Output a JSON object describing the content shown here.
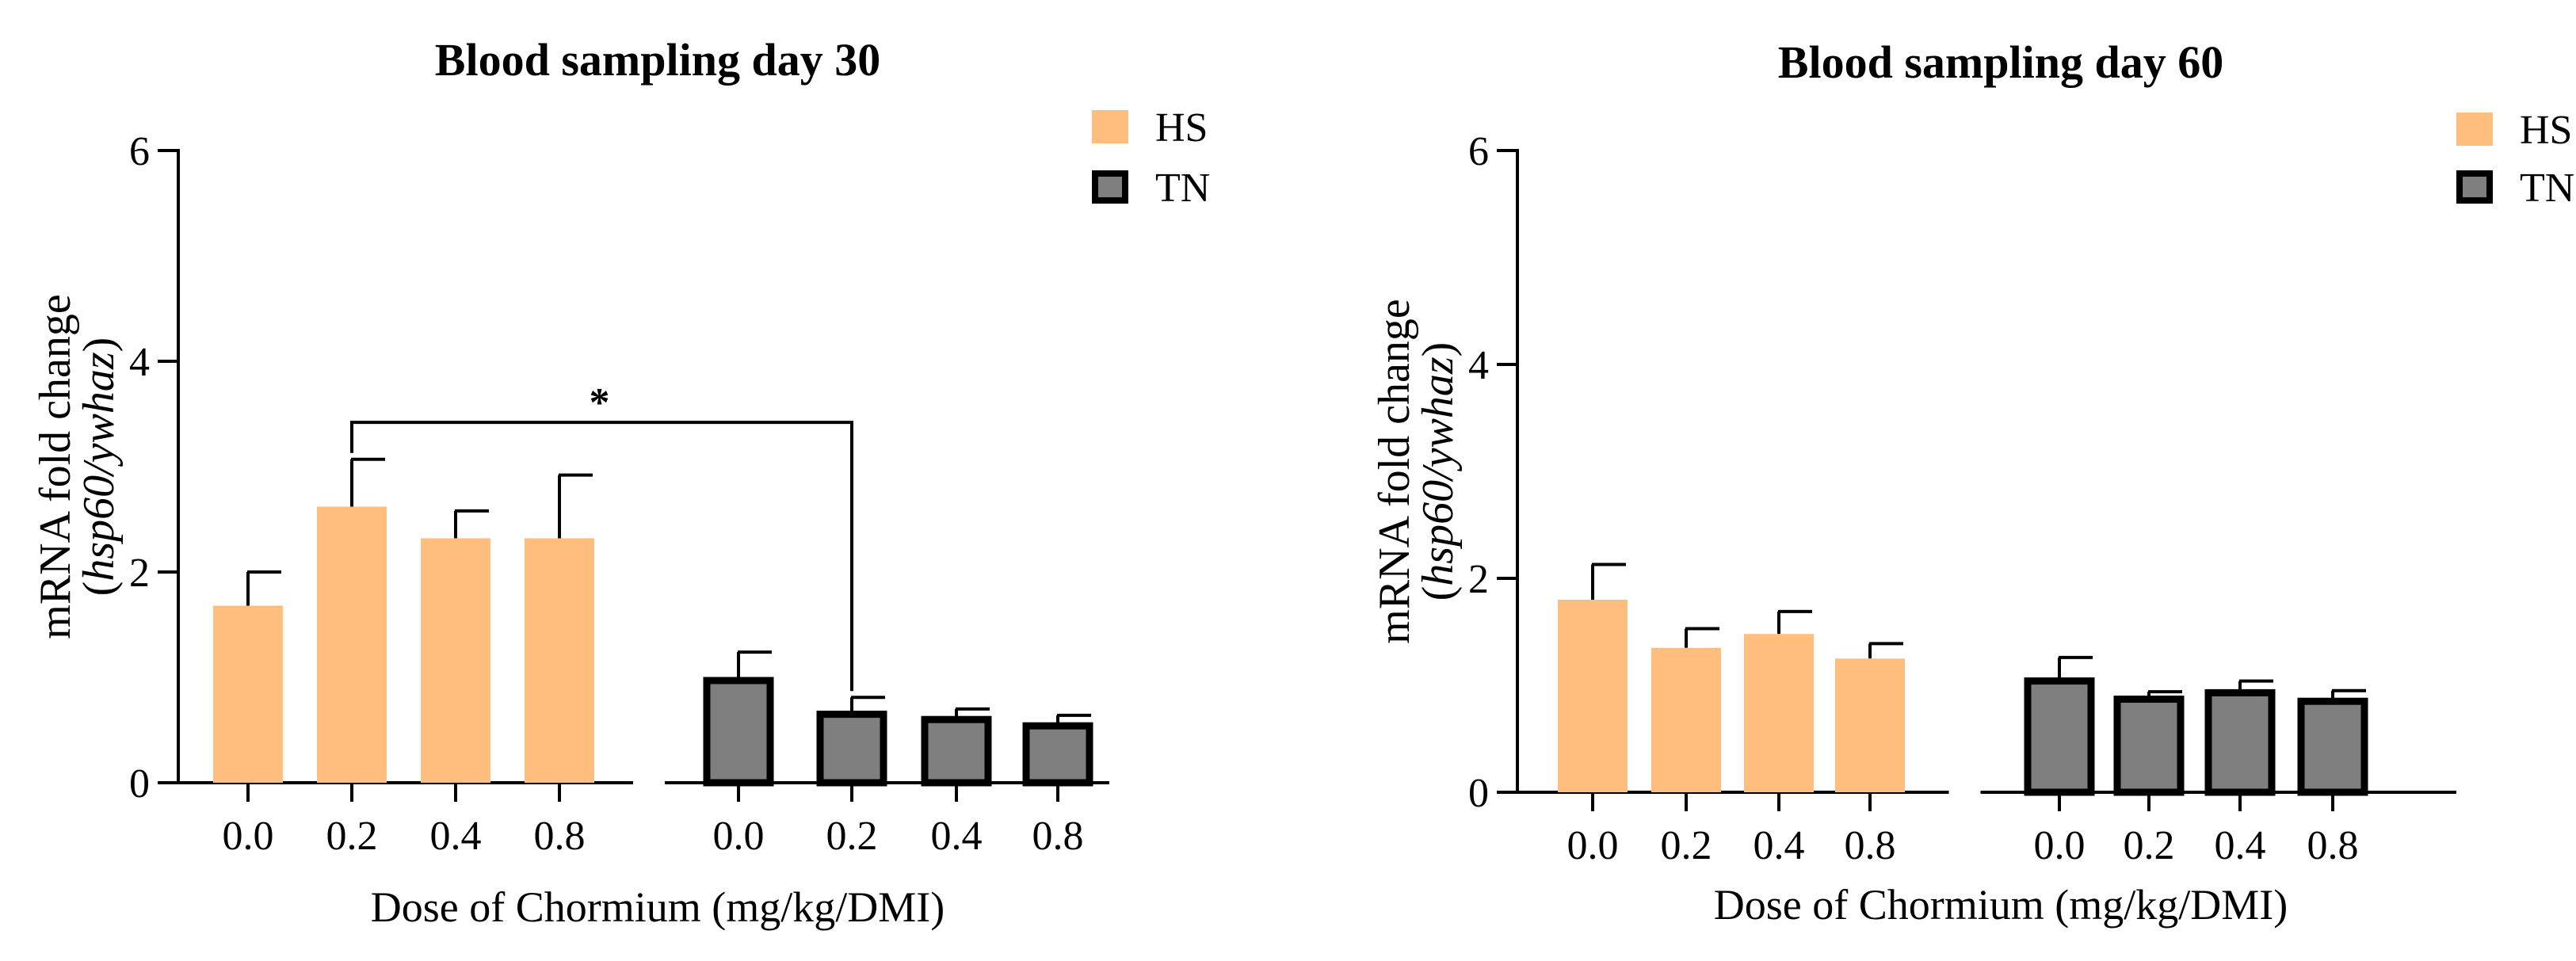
{
  "colors": {
    "hs": "#FFBE7D",
    "tn": "#7F7F7F",
    "tn_border": "#000000",
    "axis": "#000000"
  },
  "chart_data": [
    {
      "type": "bar",
      "title": "Blood sampling day 30",
      "xlabel": "Dose of Chormium (mg/kg/DMI)",
      "ylabel_main": "mRNA fold change",
      "ylabel_gene_open": "(",
      "ylabel_gene": "hsp60/ywhaz",
      "ylabel_gene_close": ")",
      "ylim": [
        0,
        6
      ],
      "yticks": [
        "0",
        "2",
        "4",
        "6"
      ],
      "categories": [
        "0.0",
        "0.2",
        "0.4",
        "0.8"
      ],
      "legend": [
        "HS",
        "TN"
      ],
      "series": [
        {
          "name": "HS",
          "values": [
            1.68,
            2.62,
            2.32,
            2.32
          ],
          "errors": [
            0.32,
            0.45,
            0.26,
            0.6
          ]
        },
        {
          "name": "TN",
          "values": [
            1.0,
            0.68,
            0.63,
            0.57
          ],
          "errors": [
            0.24,
            0.13,
            0.07,
            0.07
          ]
        }
      ],
      "significance": {
        "from": [
          0,
          1
        ],
        "to": [
          1,
          1
        ],
        "level": 3.42,
        "label": "*"
      }
    },
    {
      "type": "bar",
      "title": "Blood sampling day 60",
      "xlabel": "Dose of Chormium (mg/kg/DMI)",
      "ylabel_main": "mRNA fold change",
      "ylabel_gene_open": "(",
      "ylabel_gene": "hsp60/ywhaz",
      "ylabel_gene_close": ")",
      "ylim": [
        0,
        6
      ],
      "yticks": [
        "0",
        "2",
        "4",
        "6"
      ],
      "categories": [
        "0.0",
        "0.2",
        "0.4",
        "0.8"
      ],
      "legend": [
        "HS",
        "TN"
      ],
      "series": [
        {
          "name": "HS",
          "values": [
            1.8,
            1.35,
            1.48,
            1.25
          ],
          "errors": [
            0.33,
            0.18,
            0.21,
            0.14
          ]
        },
        {
          "name": "TN",
          "values": [
            1.07,
            0.9,
            0.96,
            0.88
          ],
          "errors": [
            0.19,
            0.04,
            0.08,
            0.07
          ]
        }
      ]
    }
  ]
}
